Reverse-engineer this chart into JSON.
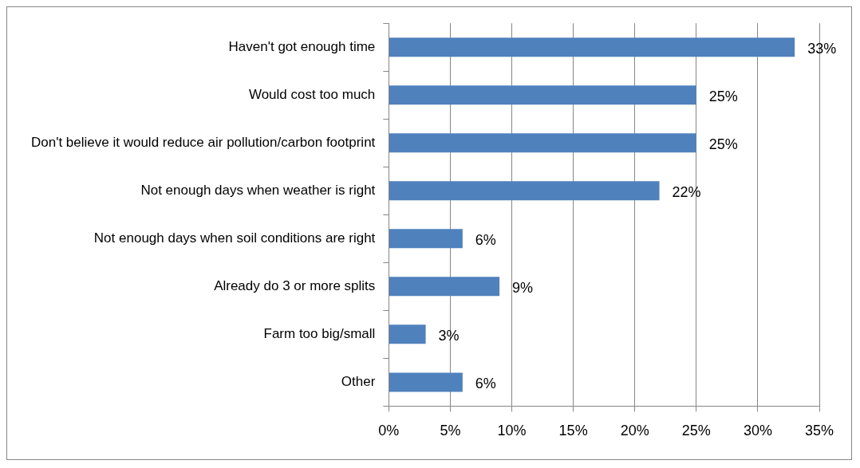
{
  "chart_data": {
    "type": "bar",
    "orientation": "horizontal",
    "categories": [
      "Haven't got enough time",
      "Would cost too much",
      "Don't believe it would reduce air pollution/carbon footprint",
      "Not enough days when weather is right",
      "Not enough days when soil conditions are right",
      "Already do 3 or more splits",
      "Farm too big/small",
      "Other"
    ],
    "values": [
      33,
      25,
      25,
      22,
      6,
      9,
      3,
      6
    ],
    "value_labels": [
      "33%",
      "25%",
      "25%",
      "22%",
      "6%",
      "9%",
      "3%",
      "6%"
    ],
    "color": "#4f81bd",
    "xlim": [
      0,
      35
    ],
    "xticks": [
      {
        "value": 0,
        "label": "0%"
      },
      {
        "value": 5,
        "label": "5%"
      },
      {
        "value": 10,
        "label": "10%"
      },
      {
        "value": 15,
        "label": "15%"
      },
      {
        "value": 20,
        "label": "20%"
      },
      {
        "value": 25,
        "label": "25%"
      },
      {
        "value": 30,
        "label": "30%"
      },
      {
        "value": 35,
        "label": "35%"
      }
    ],
    "grid": "x",
    "legend": false
  }
}
